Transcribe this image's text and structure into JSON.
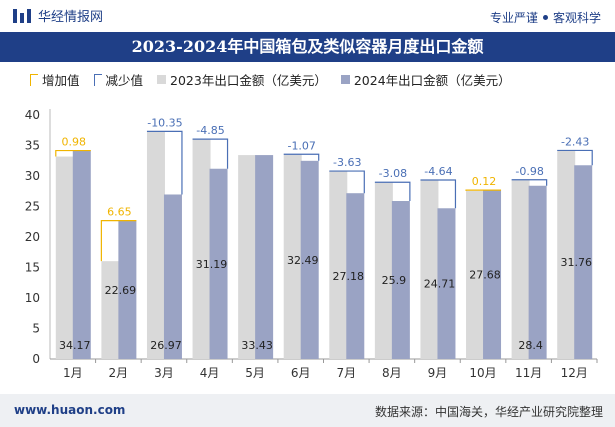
{
  "header": {
    "brand_name": "华经情报网",
    "tagline_left": "专业严谨",
    "tagline_right": "客观科学"
  },
  "colors": {
    "brand": "#1f3f87",
    "bar_2023": "#d9d9d9",
    "bar_2024": "#9aa3c4",
    "increase": "#f0b400",
    "decrease": "#4a6fb5"
  },
  "chart_data": {
    "type": "bar",
    "title": "2023-2024年中国箱包及类似容器月度出口金额",
    "legend": [
      "增加值",
      "减少值",
      "2023年出口金额（亿美元）",
      "2024年出口金额（亿美元）"
    ],
    "categories": [
      "1月",
      "2月",
      "3月",
      "4月",
      "5月",
      "6月",
      "7月",
      "8月",
      "9月",
      "10月",
      "11月",
      "12月"
    ],
    "series": [
      {
        "name": "2023年出口金额（亿美元）",
        "values": [
          33.19,
          16.04,
          37.32,
          36.04,
          33.43,
          33.56,
          30.81,
          28.98,
          29.35,
          27.56,
          29.38,
          34.19
        ]
      },
      {
        "name": "2024年出口金额（亿美元）",
        "values": [
          34.17,
          22.69,
          26.97,
          31.19,
          33.43,
          32.49,
          27.18,
          25.9,
          24.71,
          27.68,
          28.4,
          31.76
        ]
      }
    ],
    "bar_labels_2024": [
      "34.17",
      "22.69",
      "26.97",
      "31.19",
      "33.43",
      "32.49",
      "27.18",
      "25.9",
      "24.71",
      "27.68",
      "28.4",
      "31.76"
    ],
    "changes": [
      0.98,
      6.65,
      -10.35,
      -4.85,
      0,
      -1.07,
      -3.63,
      -3.08,
      -4.64,
      0.12,
      -0.98,
      -2.43
    ],
    "change_labels": [
      "0.98",
      "6.65",
      "-10.35",
      "-4.85",
      "",
      "-1.07",
      "-3.63",
      "-3.08",
      "-4.64",
      "0.12",
      "-0.98",
      "-2.43"
    ],
    "ylim": [
      0,
      40
    ],
    "yticks": [
      0,
      5,
      10,
      15,
      20,
      25,
      30,
      35,
      40
    ],
    "xlabel": "",
    "ylabel": ""
  },
  "footer": {
    "website": "www.huaon.com",
    "source": "数据来源：中国海关，华经产业研究院整理"
  }
}
